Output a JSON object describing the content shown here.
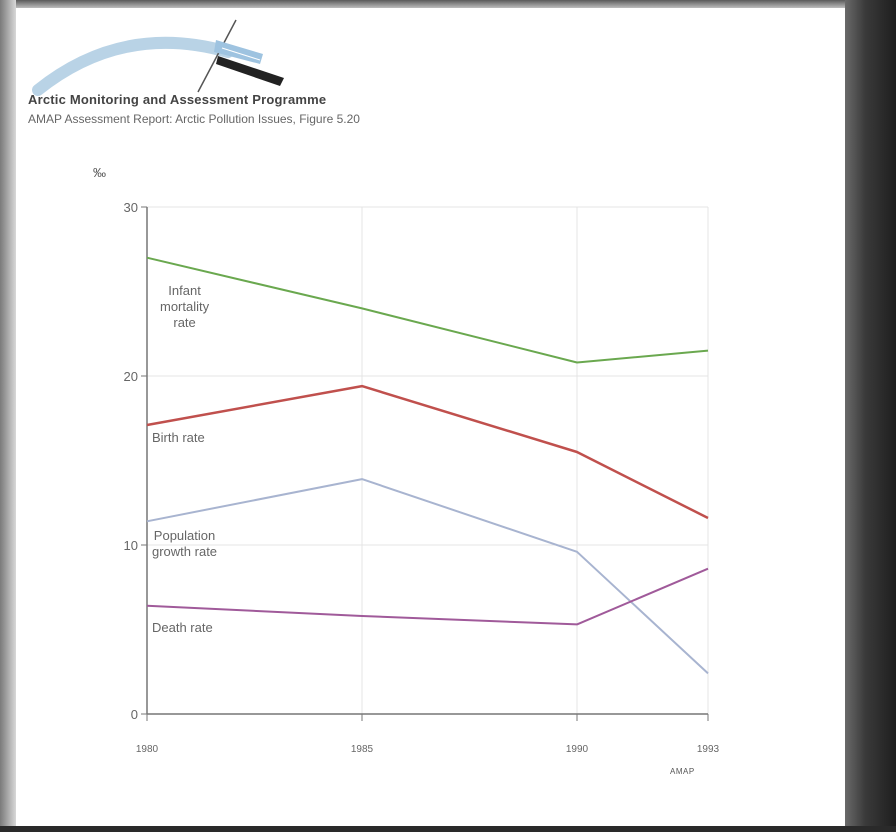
{
  "header": {
    "title": "Arctic Monitoring and Assessment Programme",
    "subtitle": "AMAP Assessment Report: Arctic Pollution Issues, Figure 5.20"
  },
  "chart_data": {
    "type": "line",
    "ylabel": "‰",
    "x": [
      1980,
      1985,
      1990,
      1993
    ],
    "x_tick_labels": [
      "1980",
      "1985",
      "1990",
      "1993"
    ],
    "ylim": [
      0,
      30
    ],
    "y_ticks": [
      0,
      10,
      20,
      30
    ],
    "y_tick_labels": [
      "0",
      "10",
      "20",
      "30"
    ],
    "grid": true,
    "series": [
      {
        "name": "Infant mortality rate",
        "values": [
          27.0,
          24.0,
          20.8,
          21.5
        ],
        "color": "#6aa84f"
      },
      {
        "name": "Birth rate",
        "values": [
          17.1,
          19.4,
          15.5,
          11.6
        ],
        "color": "#c0504d"
      },
      {
        "name": "Population growth rate",
        "values": [
          11.4,
          13.9,
          9.6,
          2.4
        ],
        "color": "#a8b4d0"
      },
      {
        "name": "Death rate",
        "values": [
          6.4,
          5.8,
          5.3,
          8.6
        ],
        "color": "#a05a9a"
      }
    ],
    "series_labels": [
      [
        "Infant",
        "mortality",
        "rate"
      ],
      [
        "Birth rate"
      ],
      [
        "Population",
        "growth rate"
      ],
      [
        "Death rate"
      ]
    ],
    "credit": "AMAP"
  }
}
